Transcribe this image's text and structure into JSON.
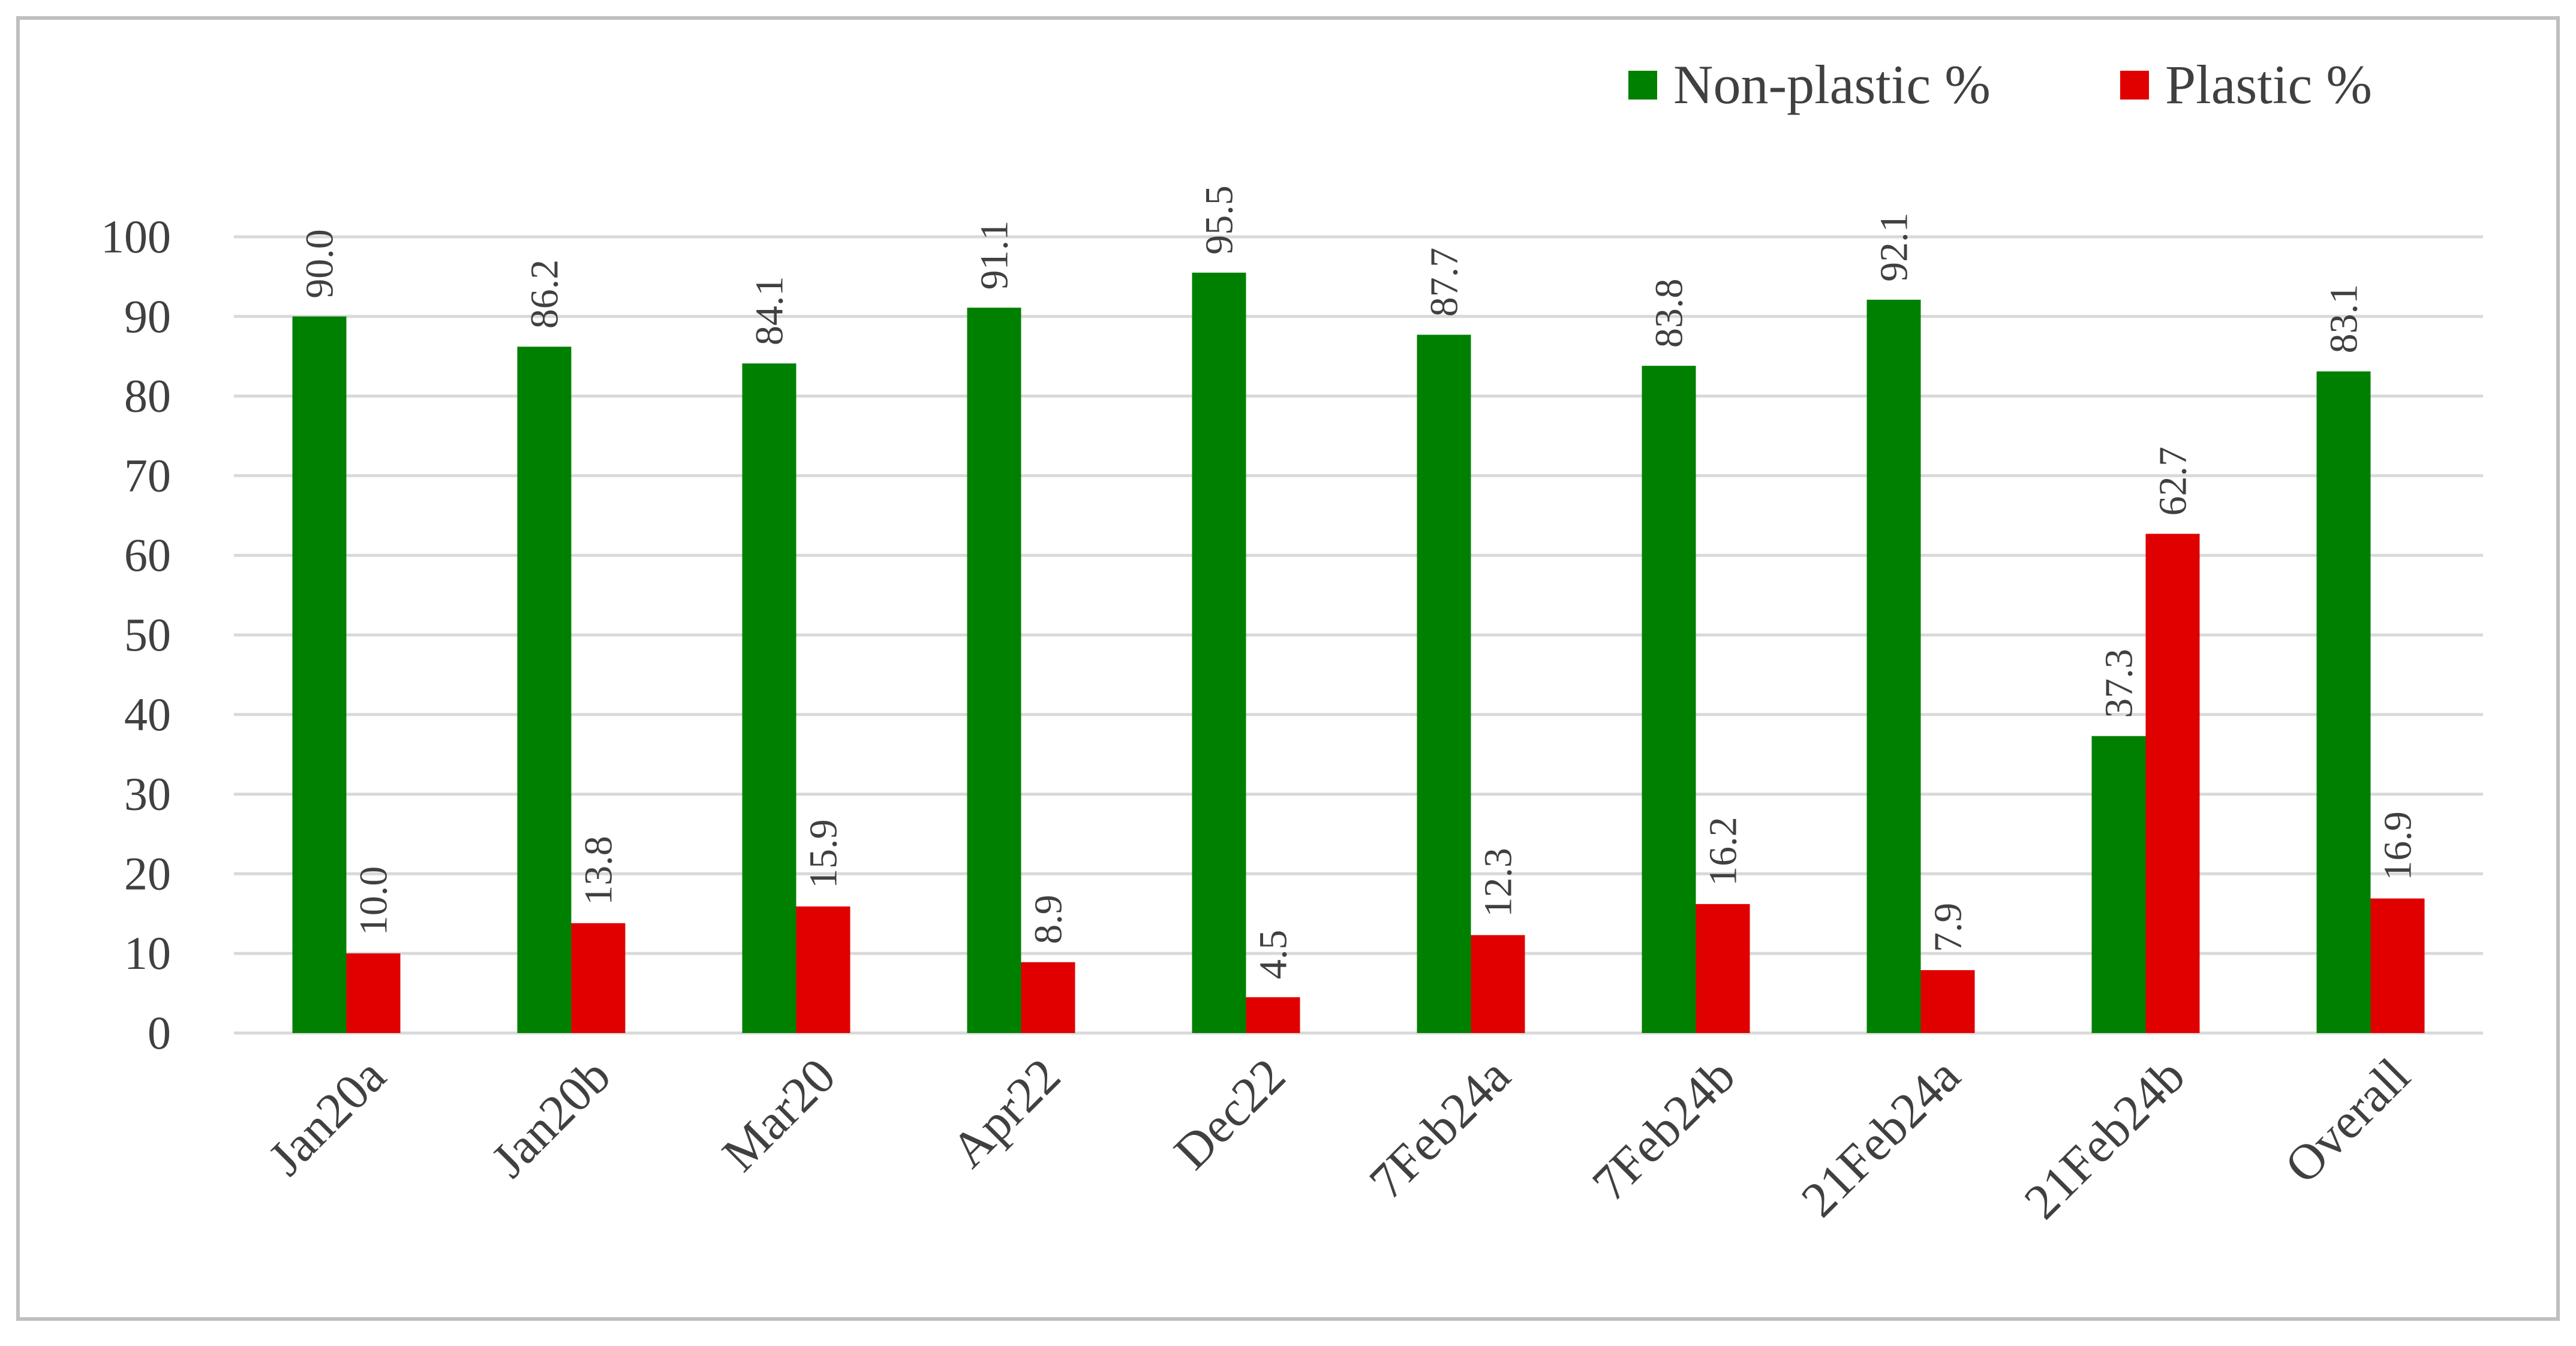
{
  "chart_data": {
    "type": "bar",
    "title": "",
    "xlabel": "",
    "ylabel": "",
    "categories": [
      "Jan20a",
      "Jan20b",
      "Mar20",
      "Apr22",
      "Dec22",
      "7Feb24a",
      "7Feb24b",
      "21Feb24a",
      "21Feb24b",
      "Overall"
    ],
    "series": [
      {
        "name": "Non-plastic %",
        "color": "#008000",
        "values": [
          90.0,
          86.2,
          84.1,
          91.1,
          95.5,
          87.7,
          83.8,
          92.1,
          37.3,
          83.1
        ],
        "labels": [
          "90.0",
          "86.2",
          "84.1",
          "91.1",
          "95.5",
          "87.7",
          "83.8",
          "92.1",
          "37.3",
          "83.1"
        ]
      },
      {
        "name": "Plastic %",
        "color": "#e00000",
        "values": [
          10.0,
          13.8,
          15.9,
          8.9,
          4.5,
          12.3,
          16.2,
          7.9,
          62.7,
          16.9
        ],
        "labels": [
          "10.0",
          "13.8",
          "15.9",
          "8.9",
          "4.5",
          "12.3",
          "16.2",
          "7.9",
          "62.7",
          "16.9"
        ]
      }
    ],
    "ylim": [
      0,
      100
    ],
    "yticks": [
      "0",
      "10",
      "20",
      "30",
      "40",
      "50",
      "60",
      "70",
      "80",
      "90",
      "100"
    ],
    "grid": true,
    "legend": "top-right",
    "colors": {
      "gridline": "#d9d9d9",
      "border": "#bfbfbf",
      "text": "#404040"
    }
  }
}
